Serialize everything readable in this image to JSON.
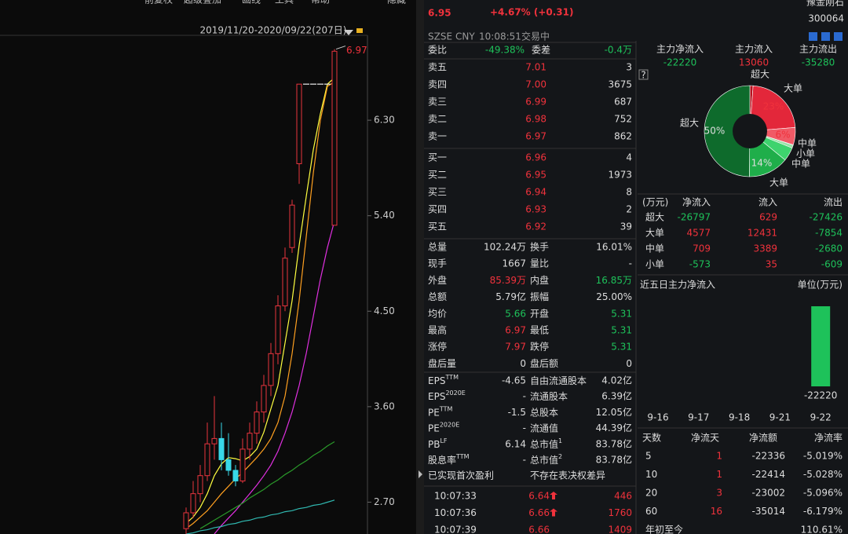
{
  "colors": {
    "up": "#f0323c",
    "down": "#1ec25a",
    "text": "#dddddd",
    "muted": "#9a9a9a",
    "accent": "#ffd24a"
  },
  "left": {
    "toolbar": [
      "前复权",
      "超级叠加",
      "画线",
      "工具",
      "帮助",
      "隐藏"
    ],
    "date_range": "2019/11/20-2020/09/22(207日)",
    "chart": {
      "ylim": [
        2.4,
        7.1
      ],
      "yticks": [
        {
          "value": 6.3,
          "label": "6.30"
        },
        {
          "value": 5.4,
          "label": "5.40"
        },
        {
          "value": 4.5,
          "label": "4.50"
        },
        {
          "value": 3.6,
          "label": "3.60"
        },
        {
          "value": 2.7,
          "label": "2.70"
        }
      ],
      "high_label": {
        "value": 6.97,
        "label": "6.97"
      },
      "candles": [
        {
          "o": 2.45,
          "h": 2.65,
          "l": 2.38,
          "c": 2.6
        },
        {
          "o": 2.6,
          "h": 2.9,
          "l": 2.55,
          "c": 2.78
        },
        {
          "o": 2.78,
          "h": 3.05,
          "l": 2.7,
          "c": 2.95
        },
        {
          "o": 2.95,
          "h": 3.45,
          "l": 2.9,
          "c": 3.25
        },
        {
          "o": 3.25,
          "h": 3.7,
          "l": 3.1,
          "c": 3.3
        },
        {
          "o": 3.3,
          "h": 3.45,
          "l": 3.0,
          "c": 3.1
        },
        {
          "o": 3.1,
          "h": 3.35,
          "l": 2.95,
          "c": 3.0
        },
        {
          "o": 3.0,
          "h": 3.05,
          "l": 2.85,
          "c": 2.9
        },
        {
          "o": 2.9,
          "h": 3.3,
          "l": 2.88,
          "c": 3.2
        },
        {
          "o": 3.2,
          "h": 3.45,
          "l": 3.1,
          "c": 3.35
        },
        {
          "o": 3.35,
          "h": 3.65,
          "l": 3.25,
          "c": 3.55
        },
        {
          "o": 3.55,
          "h": 3.9,
          "l": 3.45,
          "c": 3.8
        },
        {
          "o": 3.8,
          "h": 4.2,
          "l": 3.7,
          "c": 4.1
        },
        {
          "o": 4.1,
          "h": 4.65,
          "l": 4.0,
          "c": 4.55
        },
        {
          "o": 4.55,
          "h": 5.1,
          "l": 4.5,
          "c": 5.0
        },
        {
          "o": 5.1,
          "h": 5.55,
          "l": 5.05,
          "c": 5.5
        },
        {
          "o": 5.89,
          "h": 6.64,
          "l": 5.7,
          "c": 6.64
        },
        {
          "o": 6.64,
          "h": 6.64,
          "l": 6.64,
          "c": 6.64
        },
        {
          "o": 6.64,
          "h": 6.64,
          "l": 6.64,
          "c": 6.64
        },
        {
          "o": 6.64,
          "h": 6.64,
          "l": 6.64,
          "c": 6.64
        },
        {
          "o": 6.64,
          "h": 6.64,
          "l": 6.64,
          "c": 6.64
        },
        {
          "o": 5.31,
          "h": 6.97,
          "l": 5.31,
          "c": 6.95
        }
      ],
      "ma": [
        {
          "color": "#ffff40",
          "values": [
            2.5,
            2.56,
            2.65,
            2.78,
            2.95,
            3.06,
            3.12,
            3.11,
            3.09,
            3.13,
            3.2,
            3.36,
            3.58,
            3.8,
            4.2,
            4.6,
            5.12,
            5.58,
            6.02,
            6.36,
            6.64,
            6.7
          ]
        },
        {
          "color": "#ffa020",
          "values": [
            2.45,
            2.5,
            2.56,
            2.62,
            2.7,
            2.78,
            2.85,
            2.92,
            2.98,
            3.05,
            3.12,
            3.2,
            3.3,
            3.45,
            3.7,
            4.1,
            4.6,
            5.2,
            5.8,
            6.3,
            6.62,
            6.66
          ]
        },
        {
          "color": "#e030e0",
          "values": [
            null,
            null,
            null,
            null,
            2.4,
            2.48,
            2.55,
            2.62,
            2.7,
            2.78,
            2.86,
            2.95,
            3.05,
            3.18,
            3.35,
            3.55,
            3.8,
            4.1,
            4.45,
            4.8,
            5.1,
            5.35
          ]
        },
        {
          "color": "#2a9a2a",
          "values": [
            null,
            null,
            2.45,
            2.49,
            2.53,
            2.57,
            2.61,
            2.65,
            2.69,
            2.74,
            2.78,
            2.82,
            2.87,
            2.91,
            2.96,
            3.0,
            3.05,
            3.09,
            3.14,
            3.18,
            3.23,
            3.27
          ]
        },
        {
          "color": "#30b8b0",
          "values": [
            2.4,
            2.41,
            2.43,
            2.44,
            2.46,
            2.47,
            2.49,
            2.5,
            2.52,
            2.53,
            2.55,
            2.56,
            2.58,
            2.59,
            2.61,
            2.62,
            2.64,
            2.65,
            2.67,
            2.68,
            2.7,
            2.72
          ]
        }
      ]
    }
  },
  "quote": {
    "price": "6.95",
    "change": "+4.67% (+0.31)",
    "name": "豫金刚石",
    "code": "300064",
    "meta": [
      "SZSE",
      "CNY",
      "10:08:51",
      "交易中"
    ],
    "wb_label": "委比",
    "wb": "-49.38%",
    "wc_label": "委差",
    "wc": "-0.4万",
    "asks": [
      {
        "label": "卖五",
        "price": "7.01",
        "vol": "3"
      },
      {
        "label": "卖四",
        "price": "7.00",
        "vol": "3675"
      },
      {
        "label": "卖三",
        "price": "6.99",
        "vol": "687"
      },
      {
        "label": "卖二",
        "price": "6.98",
        "vol": "752"
      },
      {
        "label": "卖一",
        "price": "6.97",
        "vol": "862"
      }
    ],
    "bids": [
      {
        "label": "买一",
        "price": "6.96",
        "vol": "4"
      },
      {
        "label": "买二",
        "price": "6.95",
        "vol": "1973"
      },
      {
        "label": "买三",
        "price": "6.94",
        "vol": "8"
      },
      {
        "label": "买四",
        "price": "6.93",
        "vol": "2"
      },
      {
        "label": "买五",
        "price": "6.92",
        "vol": "39"
      }
    ],
    "stats": [
      {
        "l1": "总量",
        "v1": "102.24万",
        "l2": "换手",
        "v2": "16.01%"
      },
      {
        "l1": "现手",
        "v1": "1667",
        "l2": "量比",
        "v2": "-"
      },
      {
        "l1": "外盘",
        "v1": "85.39万",
        "t1": "up",
        "l2": "内盘",
        "v2": "16.85万",
        "t2": "down"
      },
      {
        "l1": "总额",
        "v1": "5.79亿",
        "l2": "振幅",
        "v2": "25.00%"
      },
      {
        "l1": "均价",
        "v1": "5.66",
        "t1": "down",
        "l2": "开盘",
        "v2": "5.31",
        "t2": "down"
      },
      {
        "l1": "最高",
        "v1": "6.97",
        "t1": "up",
        "l2": "最低",
        "v2": "5.31",
        "t2": "down"
      },
      {
        "l1": "涨停",
        "v1": "7.97",
        "t1": "up",
        "l2": "跌停",
        "v2": "5.31",
        "t2": "down"
      },
      {
        "l1": "盘后量",
        "v1": "0",
        "l2": "盘后额",
        "v2": "0"
      }
    ],
    "fundamentals": [
      {
        "l1": "EPS",
        "s1": "TTM",
        "v1": "-4.65",
        "l2": "自由流通股本",
        "v2": "4.02亿"
      },
      {
        "l1": "EPS",
        "s1": "2020E",
        "v1": "-",
        "l2": "流通股本",
        "v2": "6.39亿"
      },
      {
        "l1": "PE",
        "s1": "TTM",
        "v1": "-1.5",
        "l2": "总股本",
        "v2": "12.05亿"
      },
      {
        "l1": "PE",
        "s1": "2020E",
        "v1": "-",
        "l2": "流通值",
        "v2": "44.39亿"
      },
      {
        "l1": "PB",
        "s1": "LF",
        "v1": "6.14",
        "l2": "总市值",
        "s2": "1",
        "v2": "83.78亿"
      },
      {
        "l1": "股息率",
        "s1": "TTM",
        "v1": "-",
        "l2": "总市值",
        "s2": "2",
        "v2": "83.78亿"
      }
    ],
    "notes": [
      "已实现首次盈利",
      "不存在表决权差异"
    ],
    "trades": [
      {
        "time": "10:07:33",
        "price": "6.64",
        "vol": "446",
        "dir": "up"
      },
      {
        "time": "10:07:36",
        "price": "6.66",
        "vol": "1760",
        "dir": "up"
      },
      {
        "time": "10:07:39",
        "price": "6.66",
        "vol": "1409"
      }
    ]
  },
  "flow": {
    "summary": [
      {
        "label": "主力净流入",
        "value": -22220
      },
      {
        "label": "主力流入",
        "value": 13060
      },
      {
        "label": "主力流出",
        "value": -35280
      }
    ],
    "help": "?",
    "pie_labels": [
      "超大",
      "大单",
      "23%",
      "6%",
      "中单",
      "小单",
      "中单",
      "14%",
      "大单",
      "超大",
      "50%"
    ],
    "header": [
      "(万元)",
      "净流入",
      "流入",
      "流出"
    ],
    "rows": [
      {
        "label": "超大",
        "net": -26797,
        "in": 629,
        "out": -27426,
        "in_color": "#b3121f",
        "out_color": "#0e6b2c"
      },
      {
        "label": "大单",
        "net": 4577,
        "in": 12431,
        "out": -7854,
        "in_color": "#e3273a",
        "out_color": "#1fae4a"
      },
      {
        "label": "中单",
        "net": 709,
        "in": 3389,
        "out": -2680,
        "in_color": "#f05a66",
        "out_color": "#3ed36e"
      },
      {
        "label": "小单",
        "net": -573,
        "in": 35,
        "out": -609,
        "in_color": "#f59aa0",
        "out_color": "#9be0a8"
      }
    ],
    "five_day": {
      "title": "近五日主力净流入",
      "unit": "单位(万元)",
      "dates": [
        "9-16",
        "9-17",
        "9-18",
        "9-21",
        "9-22"
      ],
      "values": [
        null,
        null,
        null,
        null,
        -22220
      ]
    },
    "period_header": [
      "天数",
      "净流天",
      "净流额",
      "净流率"
    ],
    "periods": [
      {
        "days": 5,
        "count": 1,
        "amount": -22336,
        "rate": "-5.019%"
      },
      {
        "days": 10,
        "count": 1,
        "amount": -22414,
        "rate": "-5.028%"
      },
      {
        "days": 20,
        "count": 3,
        "amount": -23002,
        "rate": "-5.096%"
      },
      {
        "days": 60,
        "count": 16,
        "amount": -35014,
        "rate": "-6.179%"
      },
      {
        "days": "年初至今",
        "rate": "110.61%"
      }
    ]
  }
}
